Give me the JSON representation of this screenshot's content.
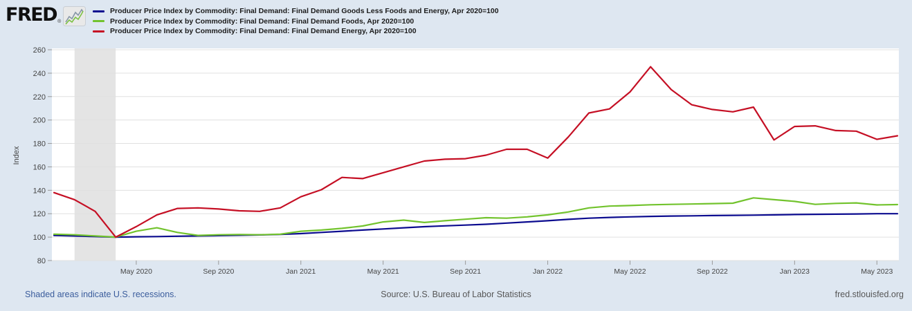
{
  "header": {
    "logo_text": "FRED",
    "logo_mark": "®"
  },
  "footer": {
    "recession_note": "Shaded areas indicate U.S. recessions.",
    "source": "Source: U.S. Bureau of Labor Statistics",
    "site": "fred.stlouisfed.org"
  },
  "chart_data": {
    "type": "line",
    "title": "",
    "xlabel": "",
    "ylabel": "Index",
    "ylim": [
      80,
      260
    ],
    "yticks": [
      80,
      100,
      120,
      140,
      160,
      180,
      200,
      220,
      240,
      260
    ],
    "grid": "horizontal",
    "legend_position": "top",
    "x": [
      "2020-01",
      "2020-02",
      "2020-03",
      "2020-04",
      "2020-05",
      "2020-06",
      "2020-07",
      "2020-08",
      "2020-09",
      "2020-10",
      "2020-11",
      "2020-12",
      "2021-01",
      "2021-02",
      "2021-03",
      "2021-04",
      "2021-05",
      "2021-06",
      "2021-07",
      "2021-08",
      "2021-09",
      "2021-10",
      "2021-11",
      "2021-12",
      "2022-01",
      "2022-02",
      "2022-03",
      "2022-04",
      "2022-05",
      "2022-06",
      "2022-07",
      "2022-08",
      "2022-09",
      "2022-10",
      "2022-11",
      "2022-12",
      "2023-01",
      "2023-02",
      "2023-03",
      "2023-04",
      "2023-05",
      "2023-06"
    ],
    "xticks": [
      {
        "month": "2020-05",
        "label": "May 2020"
      },
      {
        "month": "2020-09",
        "label": "Sep 2020"
      },
      {
        "month": "2021-01",
        "label": "Jan 2021"
      },
      {
        "month": "2021-05",
        "label": "May 2021"
      },
      {
        "month": "2021-09",
        "label": "Sep 2021"
      },
      {
        "month": "2022-01",
        "label": "Jan 2022"
      },
      {
        "month": "2022-05",
        "label": "May 2022"
      },
      {
        "month": "2022-09",
        "label": "Sep 2022"
      },
      {
        "month": "2023-01",
        "label": "Jan 2023"
      },
      {
        "month": "2023-05",
        "label": "May 2023"
      }
    ],
    "recession_band": {
      "from": "2020-02",
      "to": "2020-04",
      "color": "#e4e4e4"
    },
    "series": [
      {
        "id": "goods-less-foods-energy",
        "label": "Producer Price Index by Commodity: Final Demand: Final Demand Goods Less Foods and Energy, Apr 2020=100",
        "color": "#0b0b8f",
        "values": [
          101.5,
          101.0,
          100.5,
          100.0,
          100.3,
          100.5,
          100.8,
          101.0,
          101.3,
          101.6,
          101.9,
          102.3,
          103.0,
          104.0,
          105.0,
          106.0,
          107.0,
          108.0,
          108.9,
          109.6,
          110.3,
          111.0,
          112.0,
          113.0,
          114.0,
          115.2,
          116.2,
          116.8,
          117.3,
          117.7,
          118.0,
          118.2,
          118.4,
          118.6,
          118.8,
          119.0,
          119.3,
          119.5,
          119.6,
          119.8,
          120.0,
          120.0
        ]
      },
      {
        "id": "foods",
        "label": "Producer Price Index by Commodity: Final Demand: Final Demand Foods, Apr 2020=100",
        "color": "#72c32d",
        "values": [
          102.5,
          102.0,
          101.0,
          100.0,
          105.0,
          108.0,
          104.0,
          101.5,
          102.0,
          102.2,
          102.0,
          102.5,
          105.0,
          106.0,
          107.5,
          109.5,
          113.0,
          114.5,
          112.5,
          114.0,
          115.3,
          116.6,
          116.2,
          117.3,
          119.0,
          121.5,
          125.0,
          126.5,
          127.0,
          127.6,
          128.0,
          128.3,
          128.6,
          129.0,
          133.5,
          132.0,
          130.5,
          128.0,
          128.8,
          129.2,
          127.5,
          127.8
        ]
      },
      {
        "id": "energy",
        "label": "Producer Price Index by Commodity: Final Demand: Final Demand Energy, Apr 2020=100",
        "color": "#c50f24",
        "values": [
          138.0,
          132.0,
          122.0,
          100.0,
          109.0,
          119.0,
          124.5,
          125.0,
          124.0,
          122.5,
          122.0,
          125.0,
          134.5,
          140.5,
          151.0,
          150.0,
          155.0,
          160.0,
          165.0,
          166.5,
          167.0,
          170.0,
          175.0,
          175.0,
          167.5,
          185.5,
          206.0,
          209.5,
          224.0,
          245.5,
          226.0,
          213.0,
          209.0,
          207.0,
          211.0,
          183.0,
          194.5,
          195.0,
          191.0,
          190.5,
          183.5,
          186.5
        ]
      }
    ]
  }
}
